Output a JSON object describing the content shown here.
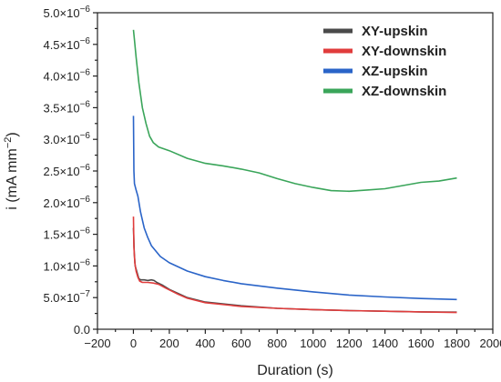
{
  "chart_data": {
    "type": "line",
    "xlabel": "Duration (s)",
    "ylabel": "i (mA mm",
    "ylabel_sup": "−2",
    "ylabel_close": ")",
    "xlim": [
      -200,
      2000
    ],
    "ylim": [
      0,
      5e-06
    ],
    "x_ticks": [
      -200,
      0,
      200,
      400,
      600,
      800,
      1000,
      1200,
      1400,
      1600,
      1800,
      2000
    ],
    "x_tick_labels": [
      "−200",
      "0",
      "200",
      "400",
      "600",
      "800",
      "1000",
      "1200",
      "1400",
      "1600",
      "1800",
      "2000"
    ],
    "y_ticks": [
      0,
      5e-07,
      1e-06,
      1.5e-06,
      2e-06,
      2.5e-06,
      3e-06,
      3.5e-06,
      4e-06,
      4.5e-06,
      5e-06
    ],
    "y_tick_labels": [
      {
        "mant": "0.0",
        "exp": ""
      },
      {
        "mant": "5.0×10",
        "exp": "−7"
      },
      {
        "mant": "1.0×10",
        "exp": "−6"
      },
      {
        "mant": "1.5×10",
        "exp": "−6"
      },
      {
        "mant": "2.0×10",
        "exp": "−6"
      },
      {
        "mant": "2.5×10",
        "exp": "−6"
      },
      {
        "mant": "3.0×10",
        "exp": "−6"
      },
      {
        "mant": "3.5×10",
        "exp": "−6"
      },
      {
        "mant": "4.0×10",
        "exp": "−6"
      },
      {
        "mant": "4.5×10",
        "exp": "−6"
      },
      {
        "mant": "5.0×10",
        "exp": "−6"
      }
    ],
    "grid": false,
    "legend_position": "top-right",
    "series": [
      {
        "name": "XY-upskin",
        "color": "#4a4a4a",
        "points": [
          [
            0,
            1.6e-06
          ],
          [
            5,
            1.2e-06
          ],
          [
            10,
            1e-06
          ],
          [
            20,
            9e-07
          ],
          [
            30,
            8e-07
          ],
          [
            40,
            7.8e-07
          ],
          [
            60,
            7.8e-07
          ],
          [
            80,
            7.7e-07
          ],
          [
            100,
            7.8e-07
          ],
          [
            115,
            7.7e-07
          ],
          [
            130,
            7.4e-07
          ],
          [
            160,
            7e-07
          ],
          [
            200,
            6.3e-07
          ],
          [
            300,
            5e-07
          ],
          [
            400,
            4.3e-07
          ],
          [
            600,
            3.7e-07
          ],
          [
            800,
            3.3e-07
          ],
          [
            1000,
            3.1e-07
          ],
          [
            1200,
            2.95e-07
          ],
          [
            1400,
            2.85e-07
          ],
          [
            1600,
            2.75e-07
          ],
          [
            1800,
            2.7e-07
          ]
        ]
      },
      {
        "name": "XY-downskin",
        "color": "#e03c3c",
        "points": [
          [
            0,
            1.78e-06
          ],
          [
            3,
            1.3e-06
          ],
          [
            8,
            1.05e-06
          ],
          [
            15,
            9.2e-07
          ],
          [
            25,
            8.2e-07
          ],
          [
            35,
            7.6e-07
          ],
          [
            50,
            7.4e-07
          ],
          [
            80,
            7.4e-07
          ],
          [
            110,
            7.3e-07
          ],
          [
            140,
            7.1e-07
          ],
          [
            180,
            6.5e-07
          ],
          [
            250,
            5.5e-07
          ],
          [
            300,
            4.9e-07
          ],
          [
            400,
            4.2e-07
          ],
          [
            600,
            3.6e-07
          ],
          [
            800,
            3.3e-07
          ],
          [
            1000,
            3.1e-07
          ],
          [
            1200,
            2.95e-07
          ],
          [
            1400,
            2.85e-07
          ],
          [
            1600,
            2.75e-07
          ],
          [
            1800,
            2.65e-07
          ]
        ]
      },
      {
        "name": "XZ-upskin",
        "color": "#2a64c8",
        "points": [
          [
            0,
            3.37e-06
          ],
          [
            3,
            2.5e-06
          ],
          [
            6,
            2.3e-06
          ],
          [
            15,
            2.2e-06
          ],
          [
            25,
            2.1e-06
          ],
          [
            40,
            1.85e-06
          ],
          [
            60,
            1.6e-06
          ],
          [
            80,
            1.45e-06
          ],
          [
            100,
            1.32e-06
          ],
          [
            150,
            1.15e-06
          ],
          [
            200,
            1.05e-06
          ],
          [
            300,
            9.2e-07
          ],
          [
            400,
            8.3e-07
          ],
          [
            500,
            7.7e-07
          ],
          [
            600,
            7.2e-07
          ],
          [
            800,
            6.5e-07
          ],
          [
            1000,
            5.9e-07
          ],
          [
            1200,
            5.4e-07
          ],
          [
            1400,
            5.1e-07
          ],
          [
            1600,
            4.85e-07
          ],
          [
            1800,
            4.7e-07
          ]
        ]
      },
      {
        "name": "XZ-downskin",
        "color": "#3aa55a",
        "points": [
          [
            0,
            4.73e-06
          ],
          [
            5,
            4.6e-06
          ],
          [
            15,
            4.3e-06
          ],
          [
            30,
            3.9e-06
          ],
          [
            50,
            3.5e-06
          ],
          [
            70,
            3.25e-06
          ],
          [
            90,
            3.05e-06
          ],
          [
            110,
            2.95e-06
          ],
          [
            140,
            2.88e-06
          ],
          [
            200,
            2.82e-06
          ],
          [
            300,
            2.7e-06
          ],
          [
            400,
            2.62e-06
          ],
          [
            500,
            2.58e-06
          ],
          [
            600,
            2.53e-06
          ],
          [
            700,
            2.47e-06
          ],
          [
            800,
            2.38e-06
          ],
          [
            900,
            2.3e-06
          ],
          [
            1000,
            2.24e-06
          ],
          [
            1100,
            2.19e-06
          ],
          [
            1200,
            2.18e-06
          ],
          [
            1300,
            2.2e-06
          ],
          [
            1400,
            2.22e-06
          ],
          [
            1500,
            2.27e-06
          ],
          [
            1600,
            2.32e-06
          ],
          [
            1700,
            2.34e-06
          ],
          [
            1800,
            2.39e-06
          ]
        ]
      }
    ]
  }
}
